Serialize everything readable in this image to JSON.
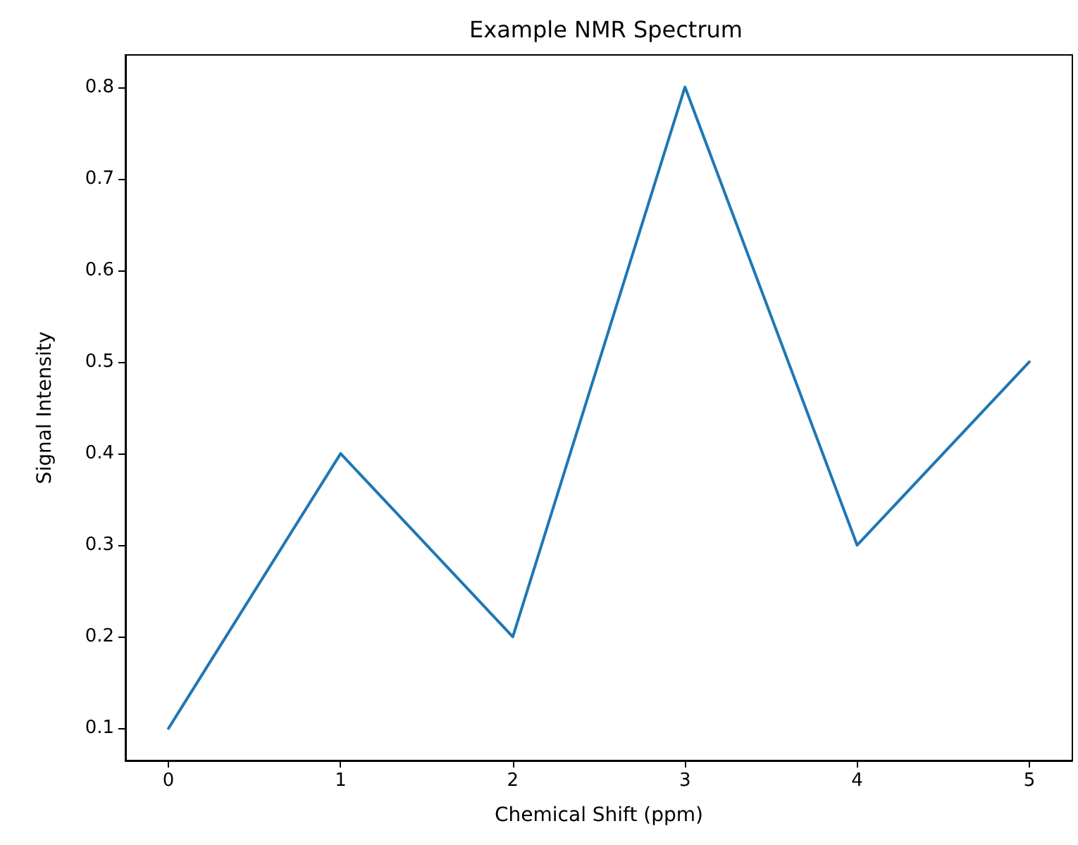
{
  "chart_data": {
    "type": "line",
    "title": "Example NMR Spectrum",
    "xlabel": "Chemical Shift (ppm)",
    "ylabel": "Signal Intensity",
    "x": [
      0,
      1,
      2,
      3,
      4,
      5
    ],
    "series": [
      {
        "color": "#1f77b4",
        "values": [
          0.1,
          0.4,
          0.2,
          0.8,
          0.3,
          0.5
        ]
      }
    ],
    "xlim": [
      -0.25,
      5.25
    ],
    "ylim": [
      0.065,
      0.835
    ],
    "xticks": [
      0,
      1,
      2,
      3,
      4,
      5
    ],
    "yticks": [
      0.1,
      0.2,
      0.3,
      0.4,
      0.5,
      0.6,
      0.7,
      0.8
    ],
    "marker": "none",
    "line_style": "solid"
  }
}
